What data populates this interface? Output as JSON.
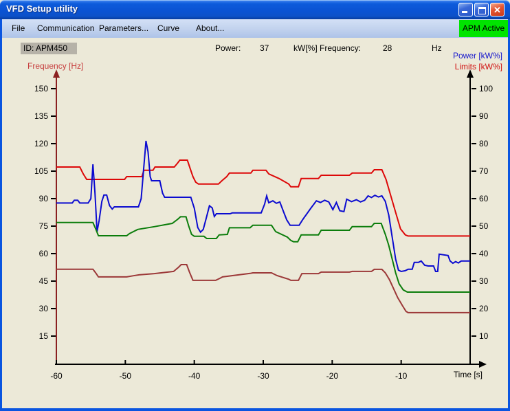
{
  "window": {
    "title": "VFD Setup utility",
    "controls": {
      "minimize": "minimize",
      "maximize": "maximize",
      "close": "close"
    }
  },
  "menu": {
    "items": [
      "File",
      "Communication",
      "Parameters...",
      "Curve",
      "About..."
    ],
    "status_badge": "APM Active",
    "badge_color": "#00e400"
  },
  "toolbar": {
    "id_value": "ID:  APM450",
    "power_label": "Power:",
    "power_value": "37",
    "power_unit": "kW[%]",
    "frequency_label": "Frequency:",
    "frequency_value": "28",
    "frequency_unit": "Hz"
  },
  "chart_data": {
    "type": "line",
    "x_axis": {
      "label": "Time [s]",
      "ticks": [
        -60,
        -50,
        -40,
        -30,
        -20,
        -10
      ],
      "range": [
        -60,
        0
      ],
      "color": "#000000"
    },
    "left_axis": {
      "label": "Frequency [Hz]",
      "label_color": "#c63c3c",
      "axis_color": "#8b2020",
      "ticks": [
        150,
        135,
        120,
        105,
        90,
        75,
        60,
        45,
        30,
        15
      ],
      "range": [
        0,
        157
      ]
    },
    "right_axis": {
      "labels": [
        "Power [kW%]",
        "Limits [kW%]"
      ],
      "label_colors": [
        "#1515cc",
        "#d01414"
      ],
      "axis_color": "#000000",
      "ticks": [
        100,
        90,
        80,
        70,
        60,
        50,
        40,
        30,
        20,
        10
      ],
      "range": [
        0,
        105
      ]
    },
    "grid": false,
    "series": [
      {
        "name": "limit-upper",
        "color": "#dd0808",
        "axis": "right",
        "unit": "kW%",
        "points": [
          [
            -60,
            71.5
          ],
          [
            -56.6,
            71.5
          ],
          [
            -56.1,
            69
          ],
          [
            -55.6,
            67
          ],
          [
            -50.1,
            67
          ],
          [
            -49.8,
            68
          ],
          [
            -47.6,
            68
          ],
          [
            -47.3,
            70.3
          ],
          [
            -46,
            70.3
          ],
          [
            -45.7,
            71.5
          ],
          [
            -42.9,
            71.5
          ],
          [
            -42.4,
            73
          ],
          [
            -42.1,
            74
          ],
          [
            -41,
            74
          ],
          [
            -40.6,
            71
          ],
          [
            -40.2,
            68
          ],
          [
            -39.8,
            66
          ],
          [
            -39.4,
            65.3
          ],
          [
            -36.5,
            65.3
          ],
          [
            -36,
            66.5
          ],
          [
            -35.3,
            68
          ],
          [
            -34.9,
            69.3
          ],
          [
            -31.8,
            69.3
          ],
          [
            -31.5,
            70.3
          ],
          [
            -29.6,
            70.3
          ],
          [
            -29.2,
            69
          ],
          [
            -27.7,
            67.3
          ],
          [
            -26.3,
            65.3
          ],
          [
            -26,
            64.3
          ],
          [
            -24.9,
            64.3
          ],
          [
            -24.5,
            67.3
          ],
          [
            -22,
            67.3
          ],
          [
            -21.6,
            68.5
          ],
          [
            -17.5,
            68.5
          ],
          [
            -17.1,
            69.3
          ],
          [
            -14.3,
            69.3
          ],
          [
            -13.9,
            70.5
          ],
          [
            -12.8,
            70.5
          ],
          [
            -12.2,
            67
          ],
          [
            -11.5,
            61
          ],
          [
            -10.8,
            55
          ],
          [
            -10.1,
            49
          ],
          [
            -9.4,
            46.8
          ],
          [
            -9,
            46.4
          ],
          [
            0,
            46.4
          ]
        ]
      },
      {
        "name": "power",
        "color": "#0b0bd0",
        "axis": "right",
        "unit": "kW%",
        "points": [
          [
            -60,
            58.4
          ],
          [
            -57.7,
            58.4
          ],
          [
            -57.4,
            59.4
          ],
          [
            -56.9,
            59.4
          ],
          [
            -56.6,
            58.4
          ],
          [
            -55.4,
            58.4
          ],
          [
            -55,
            60
          ],
          [
            -54.7,
            72.5
          ],
          [
            -54.4,
            62
          ],
          [
            -54.1,
            48
          ],
          [
            -53.8,
            52
          ],
          [
            -53.4,
            59
          ],
          [
            -53.1,
            61.3
          ],
          [
            -52.7,
            61.3
          ],
          [
            -52.3,
            57.5
          ],
          [
            -51.9,
            56.2
          ],
          [
            -51.6,
            57
          ],
          [
            -48.1,
            57
          ],
          [
            -47.7,
            60
          ],
          [
            -47.3,
            72
          ],
          [
            -47,
            81
          ],
          [
            -46.7,
            77
          ],
          [
            -46.4,
            68
          ],
          [
            -46.2,
            66.5
          ],
          [
            -45,
            66.5
          ],
          [
            -44.6,
            62
          ],
          [
            -44.3,
            60.5
          ],
          [
            -40.5,
            60.5
          ],
          [
            -40,
            56.5
          ],
          [
            -39.5,
            49.5
          ],
          [
            -39.1,
            47.8
          ],
          [
            -38.7,
            48.8
          ],
          [
            -38.2,
            53.5
          ],
          [
            -37.8,
            57.4
          ],
          [
            -37.4,
            56.6
          ],
          [
            -37.1,
            53.5
          ],
          [
            -36.8,
            54.5
          ],
          [
            -34.8,
            54.5
          ],
          [
            -34.5,
            54.8
          ],
          [
            -30.3,
            54.8
          ],
          [
            -29.8,
            58
          ],
          [
            -29.5,
            61
          ],
          [
            -29.2,
            58.5
          ],
          [
            -28.6,
            59.2
          ],
          [
            -28.1,
            58.3
          ],
          [
            -27.6,
            58.8
          ],
          [
            -27.1,
            55.5
          ],
          [
            -26.6,
            52.3
          ],
          [
            -26.1,
            50.3
          ],
          [
            -24.8,
            50.3
          ],
          [
            -24.3,
            52.3
          ],
          [
            -23.1,
            56.5
          ],
          [
            -22.3,
            59.2
          ],
          [
            -21.7,
            58.6
          ],
          [
            -21.1,
            59.4
          ],
          [
            -20.5,
            58.8
          ],
          [
            -19.9,
            56
          ],
          [
            -19.4,
            58.6
          ],
          [
            -18.9,
            55.6
          ],
          [
            -18.3,
            55.3
          ],
          [
            -17.9,
            59.8
          ],
          [
            -17.2,
            58.9
          ],
          [
            -16.5,
            59.6
          ],
          [
            -15.9,
            58.8
          ],
          [
            -15.3,
            59.4
          ],
          [
            -14.8,
            61
          ],
          [
            -14.3,
            60.4
          ],
          [
            -13.8,
            61.2
          ],
          [
            -13.3,
            60.6
          ],
          [
            -12.8,
            61
          ],
          [
            -12.3,
            59
          ],
          [
            -11.8,
            54
          ],
          [
            -11.3,
            46
          ],
          [
            -10.8,
            38
          ],
          [
            -10.4,
            34
          ],
          [
            -10,
            33.5
          ],
          [
            -9.4,
            33.8
          ],
          [
            -9,
            34.3
          ],
          [
            -8.4,
            34.3
          ],
          [
            -8.1,
            36.8
          ],
          [
            -7.5,
            36.8
          ],
          [
            -7.1,
            37.3
          ],
          [
            -6.6,
            35.8
          ],
          [
            -6.1,
            35.5
          ],
          [
            -5.3,
            35.5
          ],
          [
            -5,
            33.5
          ],
          [
            -4.7,
            33.5
          ],
          [
            -4.5,
            39.8
          ],
          [
            -3.2,
            39.3
          ],
          [
            -2.9,
            37.3
          ],
          [
            -2.5,
            36.5
          ],
          [
            -2.1,
            37.1
          ],
          [
            -1.7,
            36.6
          ],
          [
            -1.3,
            37.3
          ],
          [
            0,
            37.3
          ]
        ]
      },
      {
        "name": "limit-lower",
        "color": "#0b7d0b",
        "axis": "right",
        "unit": "kW%",
        "points": [
          [
            -60,
            51.3
          ],
          [
            -54.7,
            51.3
          ],
          [
            -54.3,
            49
          ],
          [
            -53.9,
            46.5
          ],
          [
            -49.8,
            46.5
          ],
          [
            -49.4,
            47.3
          ],
          [
            -48.2,
            48.8
          ],
          [
            -45.8,
            49.8
          ],
          [
            -43.2,
            51
          ],
          [
            -42.4,
            52.5
          ],
          [
            -42,
            53.4
          ],
          [
            -41.2,
            53.4
          ],
          [
            -40.8,
            50
          ],
          [
            -40.4,
            47
          ],
          [
            -40,
            46.3
          ],
          [
            -38.6,
            46.3
          ],
          [
            -38.2,
            45.5
          ],
          [
            -36.8,
            45.5
          ],
          [
            -36.4,
            46.8
          ],
          [
            -35.2,
            47
          ],
          [
            -34.9,
            49.4
          ],
          [
            -31.9,
            49.4
          ],
          [
            -31.5,
            50.3
          ],
          [
            -28.8,
            50.3
          ],
          [
            -28.2,
            48
          ],
          [
            -26.5,
            46
          ],
          [
            -26,
            44.8
          ],
          [
            -25.6,
            44.3
          ],
          [
            -25,
            44.3
          ],
          [
            -24.5,
            46.8
          ],
          [
            -22,
            46.8
          ],
          [
            -21.6,
            48.5
          ],
          [
            -17.5,
            48.5
          ],
          [
            -17.1,
            49.8
          ],
          [
            -14.3,
            49.8
          ],
          [
            -13.9,
            51
          ],
          [
            -12.9,
            51
          ],
          [
            -12.3,
            47
          ],
          [
            -11.8,
            43
          ],
          [
            -11.3,
            38
          ],
          [
            -10.8,
            33
          ],
          [
            -10.3,
            29
          ],
          [
            -9.7,
            26.8
          ],
          [
            -9.1,
            26
          ],
          [
            0,
            26
          ]
        ]
      },
      {
        "name": "frequency",
        "color": "#9c3838",
        "axis": "left",
        "unit": "Hz",
        "points": [
          [
            -60,
            51.5
          ],
          [
            -54.7,
            51.5
          ],
          [
            -54.3,
            49.5
          ],
          [
            -53.9,
            47.3
          ],
          [
            -49.8,
            47.3
          ],
          [
            -48.9,
            47.9
          ],
          [
            -48,
            48.4
          ],
          [
            -45.8,
            49.1
          ],
          [
            -43,
            50.3
          ],
          [
            -42.3,
            52.5
          ],
          [
            -41.9,
            54
          ],
          [
            -41.1,
            54
          ],
          [
            -40.7,
            50
          ],
          [
            -40.2,
            45.4
          ],
          [
            -36.9,
            45.4
          ],
          [
            -36.3,
            46.5
          ],
          [
            -35.9,
            47.3
          ],
          [
            -31.9,
            49.2
          ],
          [
            -31.5,
            49.5
          ],
          [
            -28.8,
            49.5
          ],
          [
            -28,
            48
          ],
          [
            -26.3,
            46
          ],
          [
            -26,
            45.4
          ],
          [
            -24.9,
            45.4
          ],
          [
            -24.4,
            49.1
          ],
          [
            -22,
            49.1
          ],
          [
            -21.6,
            49.9
          ],
          [
            -17.5,
            49.9
          ],
          [
            -17.1,
            50.3
          ],
          [
            -14.3,
            50.3
          ],
          [
            -13.9,
            51.4
          ],
          [
            -12.8,
            51.4
          ],
          [
            -12.3,
            49.5
          ],
          [
            -11.7,
            45.8
          ],
          [
            -11.1,
            40.9
          ],
          [
            -10.5,
            36
          ],
          [
            -9.8,
            31.5
          ],
          [
            -9.3,
            28.5
          ],
          [
            -9,
            27.8
          ],
          [
            0,
            27.8
          ]
        ]
      }
    ]
  }
}
